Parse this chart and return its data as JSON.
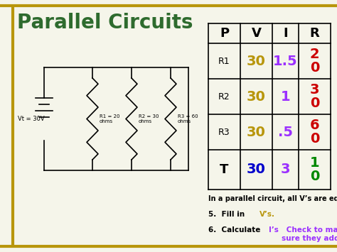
{
  "title": "Parallel Circuits",
  "title_color": "#2e6b2e",
  "bg_color": "#f5f5ea",
  "border_color": "#b8960c",
  "table": {
    "headers": [
      "P",
      "V",
      "I",
      "R"
    ],
    "header_color": "#000000",
    "rows": [
      {
        "label": "R1",
        "V": "30",
        "I": "1.5",
        "R": "2\n0"
      },
      {
        "label": "R2",
        "V": "30",
        "I": "1",
        "R": "3\n0"
      },
      {
        "label": "R3",
        "V": "30",
        "I": ".5",
        "R": "6\n0"
      },
      {
        "label": "T",
        "V": "30",
        "I": "3",
        "R": "1\n0"
      }
    ],
    "V_color": "#b8960c",
    "I_color": "#9b30ff",
    "R_color": "#cc0000",
    "T_V_color": "#0000cc",
    "T_I_color": "#9b30ff",
    "T_R_color": "#008800"
  },
  "circuit": {
    "vt_label": "Vt = 30V",
    "r1_label": "R1 = 20\nohms",
    "r2_label": "R2 = 30\nohms",
    "r3_label": "R3 = 60\nohms"
  }
}
